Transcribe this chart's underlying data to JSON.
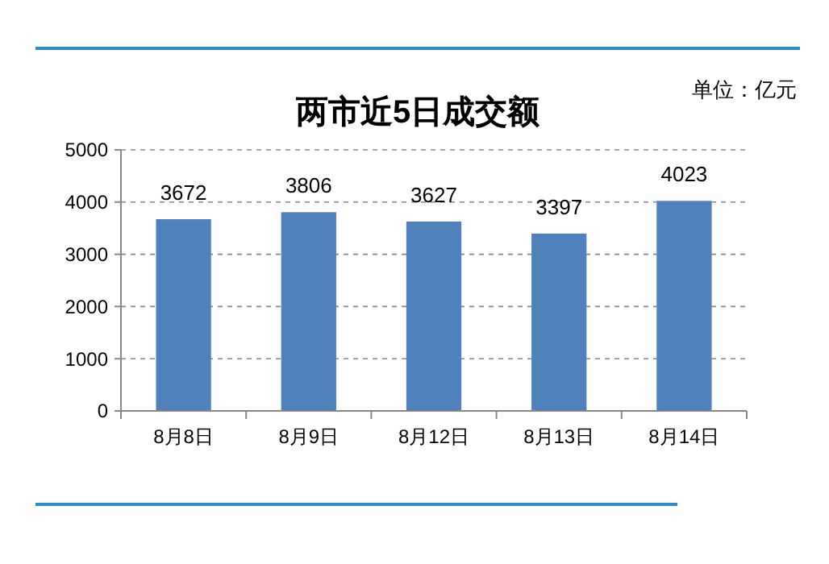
{
  "chart_data": {
    "type": "bar",
    "title": "两市近5日成交额",
    "categories": [
      "8月8日",
      "8月9日",
      "8月12日",
      "8月13日",
      "8月14日"
    ],
    "values": [
      3672,
      3806,
      3627,
      3397,
      4023
    ],
    "color": "#4f81bd",
    "ylim": [
      0,
      5000
    ],
    "yticks": [
      0,
      1000,
      2000,
      3000,
      4000,
      5000
    ],
    "grid": "y",
    "data_labels": true,
    "annotations": [
      "单位：亿元"
    ]
  }
}
